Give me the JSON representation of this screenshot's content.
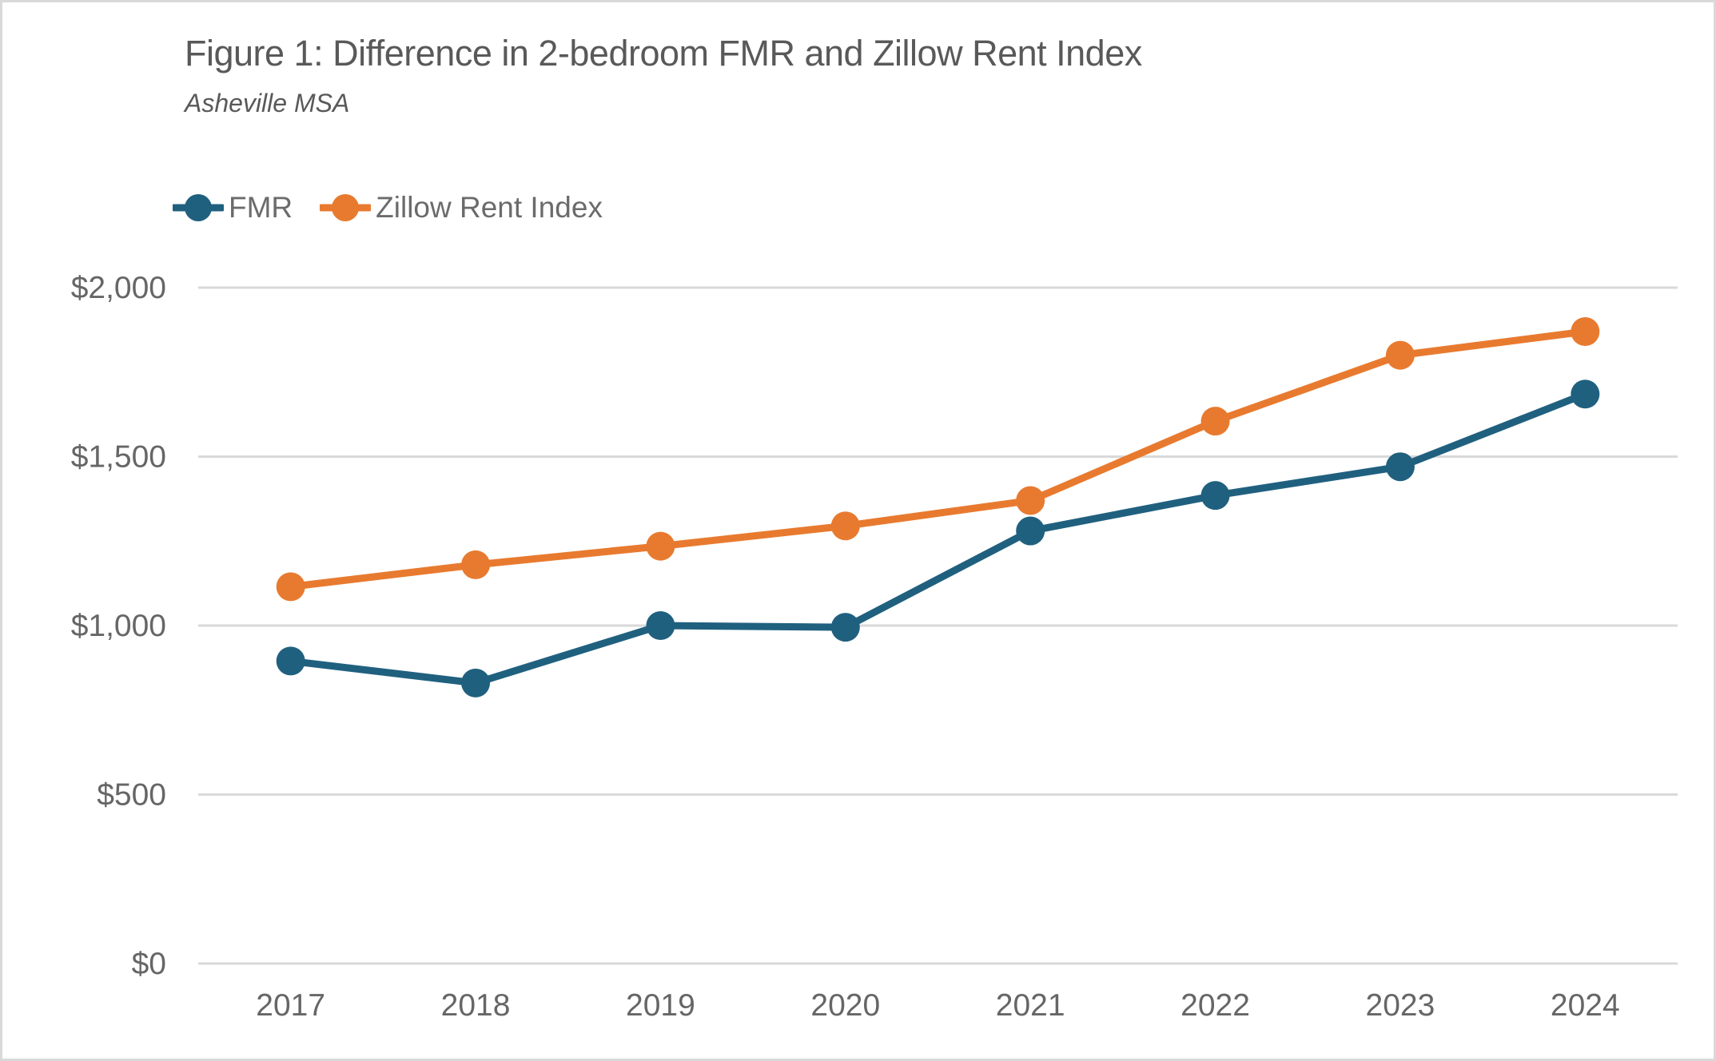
{
  "figure": {
    "title": "Figure 1: Difference in 2-bedroom FMR and Zillow Rent Index",
    "subtitle": "Asheville MSA"
  },
  "legend": [
    {
      "label": "FMR",
      "color": "#20607F"
    },
    {
      "label": "Zillow Rent Index",
      "color": "#E87A2F"
    }
  ],
  "colors": {
    "fmr_series": "#20607F",
    "zillow_series": "#E87A2F",
    "gridline": "#D9D9D9",
    "axis_text": "#666666",
    "title_text": "#595959",
    "figure_border": "#D9D9D9"
  },
  "chart_data": {
    "type": "line",
    "title": "Figure 1: Difference in 2-bedroom FMR and Zillow Rent Index",
    "subtitle": "Asheville MSA",
    "x": [
      "2017",
      "2018",
      "2019",
      "2020",
      "2021",
      "2022",
      "2023",
      "2024"
    ],
    "series": [
      {
        "name": "FMR",
        "color": "#20607F",
        "values": [
          895,
          830,
          1000,
          995,
          1280,
          1385,
          1470,
          1685
        ]
      },
      {
        "name": "Zillow Rent Index",
        "color": "#E87A2F",
        "values": [
          1115,
          1180,
          1235,
          1295,
          1370,
          1605,
          1800,
          1870
        ]
      }
    ],
    "xlabel": "",
    "ylabel": "",
    "ylim": [
      0,
      2000
    ],
    "yticks": [
      0,
      500,
      1000,
      1500,
      2000
    ],
    "ytick_labels": [
      "$0",
      "$500",
      "$1,000",
      "$1,500",
      "$2,000"
    ],
    "grid": "horizontal",
    "legend_position": "top-left",
    "marker": "circle"
  }
}
